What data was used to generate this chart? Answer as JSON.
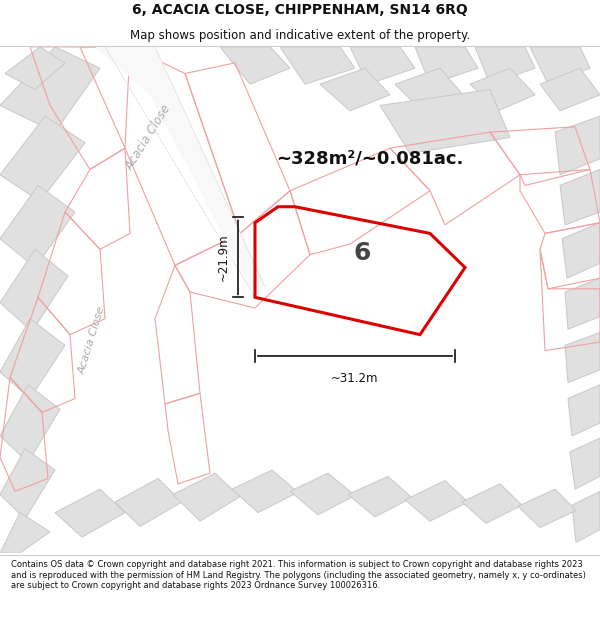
{
  "title_line1": "6, ACACIA CLOSE, CHIPPENHAM, SN14 6RQ",
  "title_line2": "Map shows position and indicative extent of the property.",
  "area_text": "~328m²/~0.081ac.",
  "label_number": "6",
  "dim_width": "~31.2m",
  "dim_height": "~21.9m",
  "footer_text": "Contains OS data © Crown copyright and database right 2021. This information is subject to Crown copyright and database rights 2023 and is reproduced with the permission of HM Land Registry. The polygons (including the associated geometry, namely x, y co-ordinates) are subject to Crown copyright and database rights 2023 Ordnance Survey 100026316.",
  "map_bg": "#f5f5f5",
  "building_fill": "#e0e0e0",
  "building_edge": "#c8c8c8",
  "parcel_color": "#f0a0a0",
  "plot_outline_color": "#dd0000",
  "plot_fill_color": "none",
  "street_label_color": "#aaaaaa",
  "dim_color": "#111111",
  "title_color": "#111111",
  "footer_color": "#111111",
  "title_fontsize": 10,
  "subtitle_fontsize": 8.5,
  "area_fontsize": 13,
  "label_fontsize": 18,
  "dim_fontsize": 8.5,
  "footer_fontsize": 6.0
}
